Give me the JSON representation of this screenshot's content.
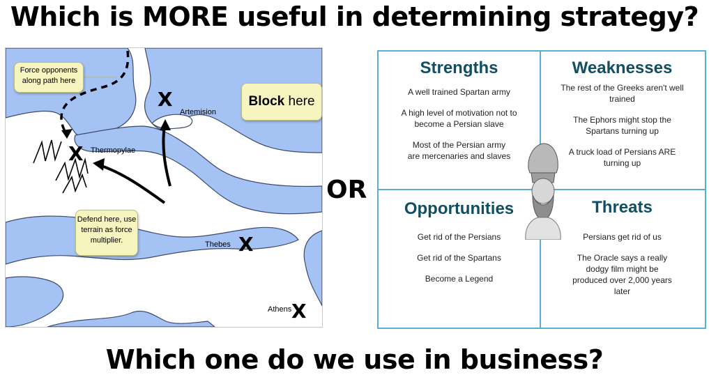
{
  "title_top": "Which is MORE useful in determining strategy?",
  "title_bottom": "Which one do we use in business?",
  "or_label": "OR",
  "map": {
    "callouts": {
      "force": "Force opponents along path here",
      "block_bold": "Block",
      "block_rest": " here",
      "defend": "Defend here, use terrain as force multiplier."
    },
    "markers": {
      "x": "X",
      "artemision": "Artemision",
      "thermopylae": "Thermopylae",
      "thebes": "Thebes",
      "athens": "Athens"
    }
  },
  "swot": {
    "strengths": {
      "heading": "Strengths",
      "items": [
        "A well trained Spartan army",
        "A high level of motivation not to become a Persian slave",
        "Most of the Persian army are mercenaries and slaves"
      ]
    },
    "weaknesses": {
      "heading": "Weaknesses",
      "items": [
        "The rest of the Greeks aren't well trained",
        "The Ephors might stop the Spartans turning up",
        "A truck load of Persians ARE turning up"
      ]
    },
    "opportunities": {
      "heading": "Opportunities",
      "items": [
        "Get rid of the Persians",
        "Get rid of the Spartans",
        "Become a Legend"
      ]
    },
    "threats": {
      "heading": "Threats",
      "items": [
        "Persians get rid of us",
        "The Oracle says a really dodgy film might be produced over 2,000 years later"
      ]
    }
  },
  "colors": {
    "sea": "#a4c2f4",
    "swot_border": "#5aaed3",
    "swot_heading": "#124e62",
    "callout": "#f6f5c0"
  }
}
